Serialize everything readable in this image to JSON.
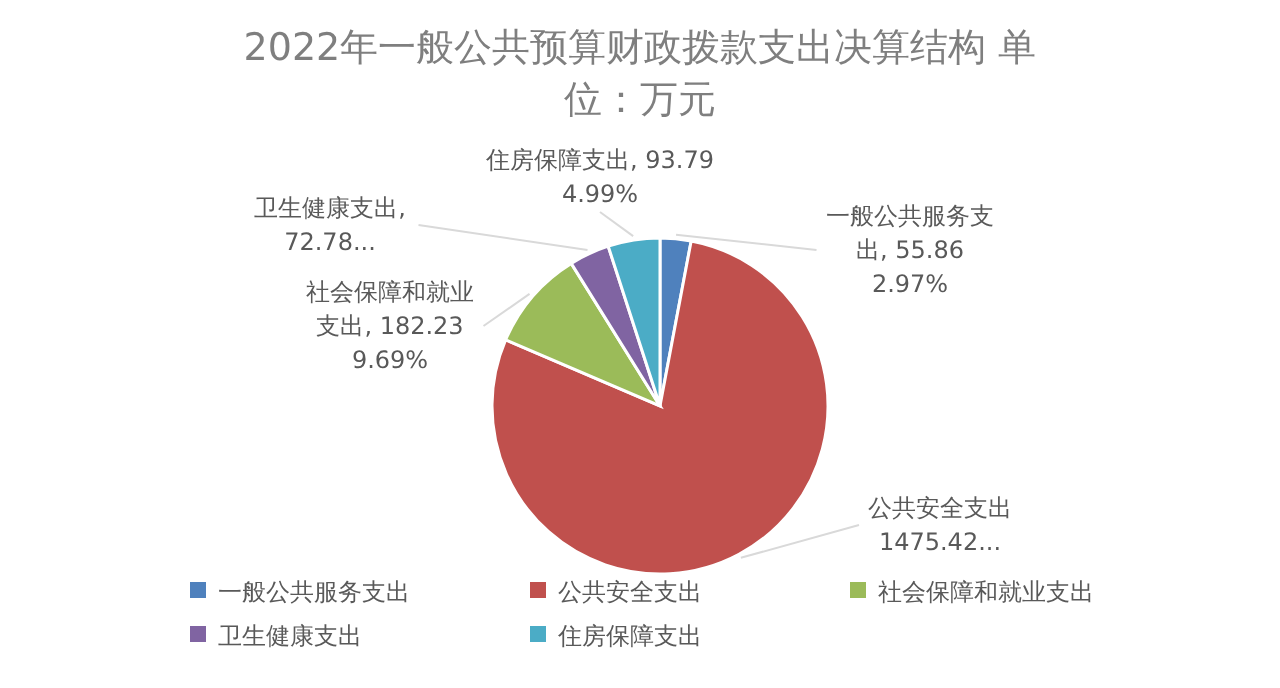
{
  "chart_data": {
    "type": "pie",
    "title": "2022年一般公共预算财政拨款支出决算结构 单位：万元",
    "categories": [
      "一般公共服务支出",
      "公共安全支出",
      "社会保障和就业支出",
      "卫生健康支出",
      "住房保障支出"
    ],
    "values": [
      55.86,
      1475.42,
      182.23,
      72.78,
      93.79
    ],
    "colors": [
      "#4f81bd",
      "#c0504d",
      "#9bbb59",
      "#8064a2",
      "#4bacc6"
    ],
    "value_labels": [
      "一般公共服务支出, 55.86 2.97%",
      "公共安全支出 1475.42...",
      "社会保障和就业支出, 182.23 9.69%",
      "卫生健康支出, 72.78...",
      "住房保障支出, 93.79 4.99%"
    ],
    "legend": "bottom"
  }
}
